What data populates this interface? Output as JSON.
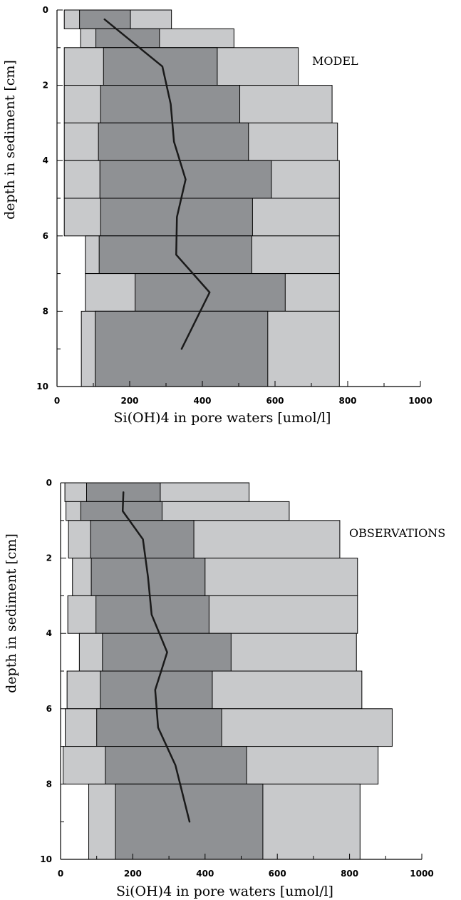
{
  "chart_data": [
    {
      "type": "bar",
      "label": "MODEL",
      "xlabel": "Si(OH)4 in pore waters [umol/l]",
      "ylabel": "depth in sediment [cm]",
      "xlim": [
        0,
        1000
      ],
      "ylim": [
        0,
        10
      ],
      "y_inverted": true,
      "xticks": [
        "0",
        "200",
        "400",
        "600",
        "800",
        "1000"
      ],
      "yticks": [
        "0",
        "2",
        "4",
        "6",
        "8",
        "10"
      ],
      "colors": {
        "outer": "#c8c9cb",
        "inner": "#8f9194",
        "line": "#1a1a1a",
        "edge": "#000000"
      },
      "layers": [
        {
          "top": 0,
          "bottom": 0.5,
          "min": 20,
          "q_low": 62,
          "q_high": 202,
          "max": 315
        },
        {
          "top": 0.5,
          "bottom": 1,
          "min": 65,
          "q_low": 107,
          "q_high": 282,
          "max": 487
        },
        {
          "top": 1,
          "bottom": 2,
          "min": 20,
          "q_low": 128,
          "q_high": 441,
          "max": 664
        },
        {
          "top": 2,
          "bottom": 3,
          "min": 20,
          "q_low": 120,
          "q_high": 503,
          "max": 757
        },
        {
          "top": 3,
          "bottom": 4,
          "min": 20,
          "q_low": 114,
          "q_high": 527,
          "max": 772
        },
        {
          "top": 4,
          "bottom": 5,
          "min": 20,
          "q_low": 118,
          "q_high": 590,
          "max": 777
        },
        {
          "top": 5,
          "bottom": 6,
          "min": 20,
          "q_low": 120,
          "q_high": 538,
          "max": 777
        },
        {
          "top": 6,
          "bottom": 7,
          "min": 78,
          "q_low": 116,
          "q_high": 536,
          "max": 777
        },
        {
          "top": 7,
          "bottom": 8,
          "min": 78,
          "q_low": 215,
          "q_high": 628,
          "max": 777
        },
        {
          "top": 8,
          "bottom": 10,
          "min": 67,
          "q_low": 105,
          "q_high": 580,
          "max": 777
        }
      ],
      "line": [
        {
          "x": 131,
          "y": 0.25
        },
        {
          "x": 290,
          "y": 1.5
        },
        {
          "x": 313,
          "y": 2.5
        },
        {
          "x": 322,
          "y": 3.5
        },
        {
          "x": 354,
          "y": 4.5
        },
        {
          "x": 330,
          "y": 5.5
        },
        {
          "x": 328,
          "y": 6.5
        },
        {
          "x": 420,
          "y": 7.5
        },
        {
          "x": 343,
          "y": 9.0
        }
      ]
    },
    {
      "type": "bar",
      "label": "OBSERVATIONS",
      "xlabel": "Si(OH)4 in pore waters [umol/l]",
      "ylabel": "depth in sediment [cm]",
      "xlim": [
        0,
        1000
      ],
      "ylim": [
        0,
        10
      ],
      "y_inverted": true,
      "xticks": [
        "0",
        "200",
        "400",
        "600",
        "800",
        "1000"
      ],
      "yticks": [
        "0",
        "2",
        "4",
        "6",
        "8",
        "10"
      ],
      "colors": {
        "outer": "#c8c9cb",
        "inner": "#8f9194",
        "line": "#1a1a1a",
        "edge": "#000000"
      },
      "layers": [
        {
          "top": 0,
          "bottom": 0.5,
          "min": 12,
          "q_low": 72,
          "q_high": 276,
          "max": 522
        },
        {
          "top": 0.5,
          "bottom": 1,
          "min": 15,
          "q_low": 56,
          "q_high": 281,
          "max": 633
        },
        {
          "top": 1,
          "bottom": 2,
          "min": 22,
          "q_low": 83,
          "q_high": 369,
          "max": 773
        },
        {
          "top": 2,
          "bottom": 3,
          "min": 33,
          "q_low": 85,
          "q_high": 400,
          "max": 822
        },
        {
          "top": 3,
          "bottom": 4,
          "min": 20,
          "q_low": 98,
          "q_high": 411,
          "max": 822
        },
        {
          "top": 4,
          "bottom": 5,
          "min": 52,
          "q_low": 116,
          "q_high": 472,
          "max": 819
        },
        {
          "top": 5,
          "bottom": 6,
          "min": 18,
          "q_low": 110,
          "q_high": 420,
          "max": 834
        },
        {
          "top": 6,
          "bottom": 7,
          "min": 13,
          "q_low": 100,
          "q_high": 446,
          "max": 918
        },
        {
          "top": 7,
          "bottom": 8,
          "min": 7,
          "q_low": 124,
          "q_high": 515,
          "max": 879
        },
        {
          "top": 8,
          "bottom": 10,
          "min": 78,
          "q_low": 152,
          "q_high": 560,
          "max": 829
        }
      ],
      "line": [
        {
          "x": 174,
          "y": 0.25
        },
        {
          "x": 172,
          "y": 0.75
        },
        {
          "x": 228,
          "y": 1.5
        },
        {
          "x": 242,
          "y": 2.5
        },
        {
          "x": 252,
          "y": 3.5
        },
        {
          "x": 295,
          "y": 4.5
        },
        {
          "x": 262,
          "y": 5.5
        },
        {
          "x": 270,
          "y": 6.5
        },
        {
          "x": 318,
          "y": 7.5
        },
        {
          "x": 357,
          "y": 9.0
        }
      ]
    }
  ]
}
